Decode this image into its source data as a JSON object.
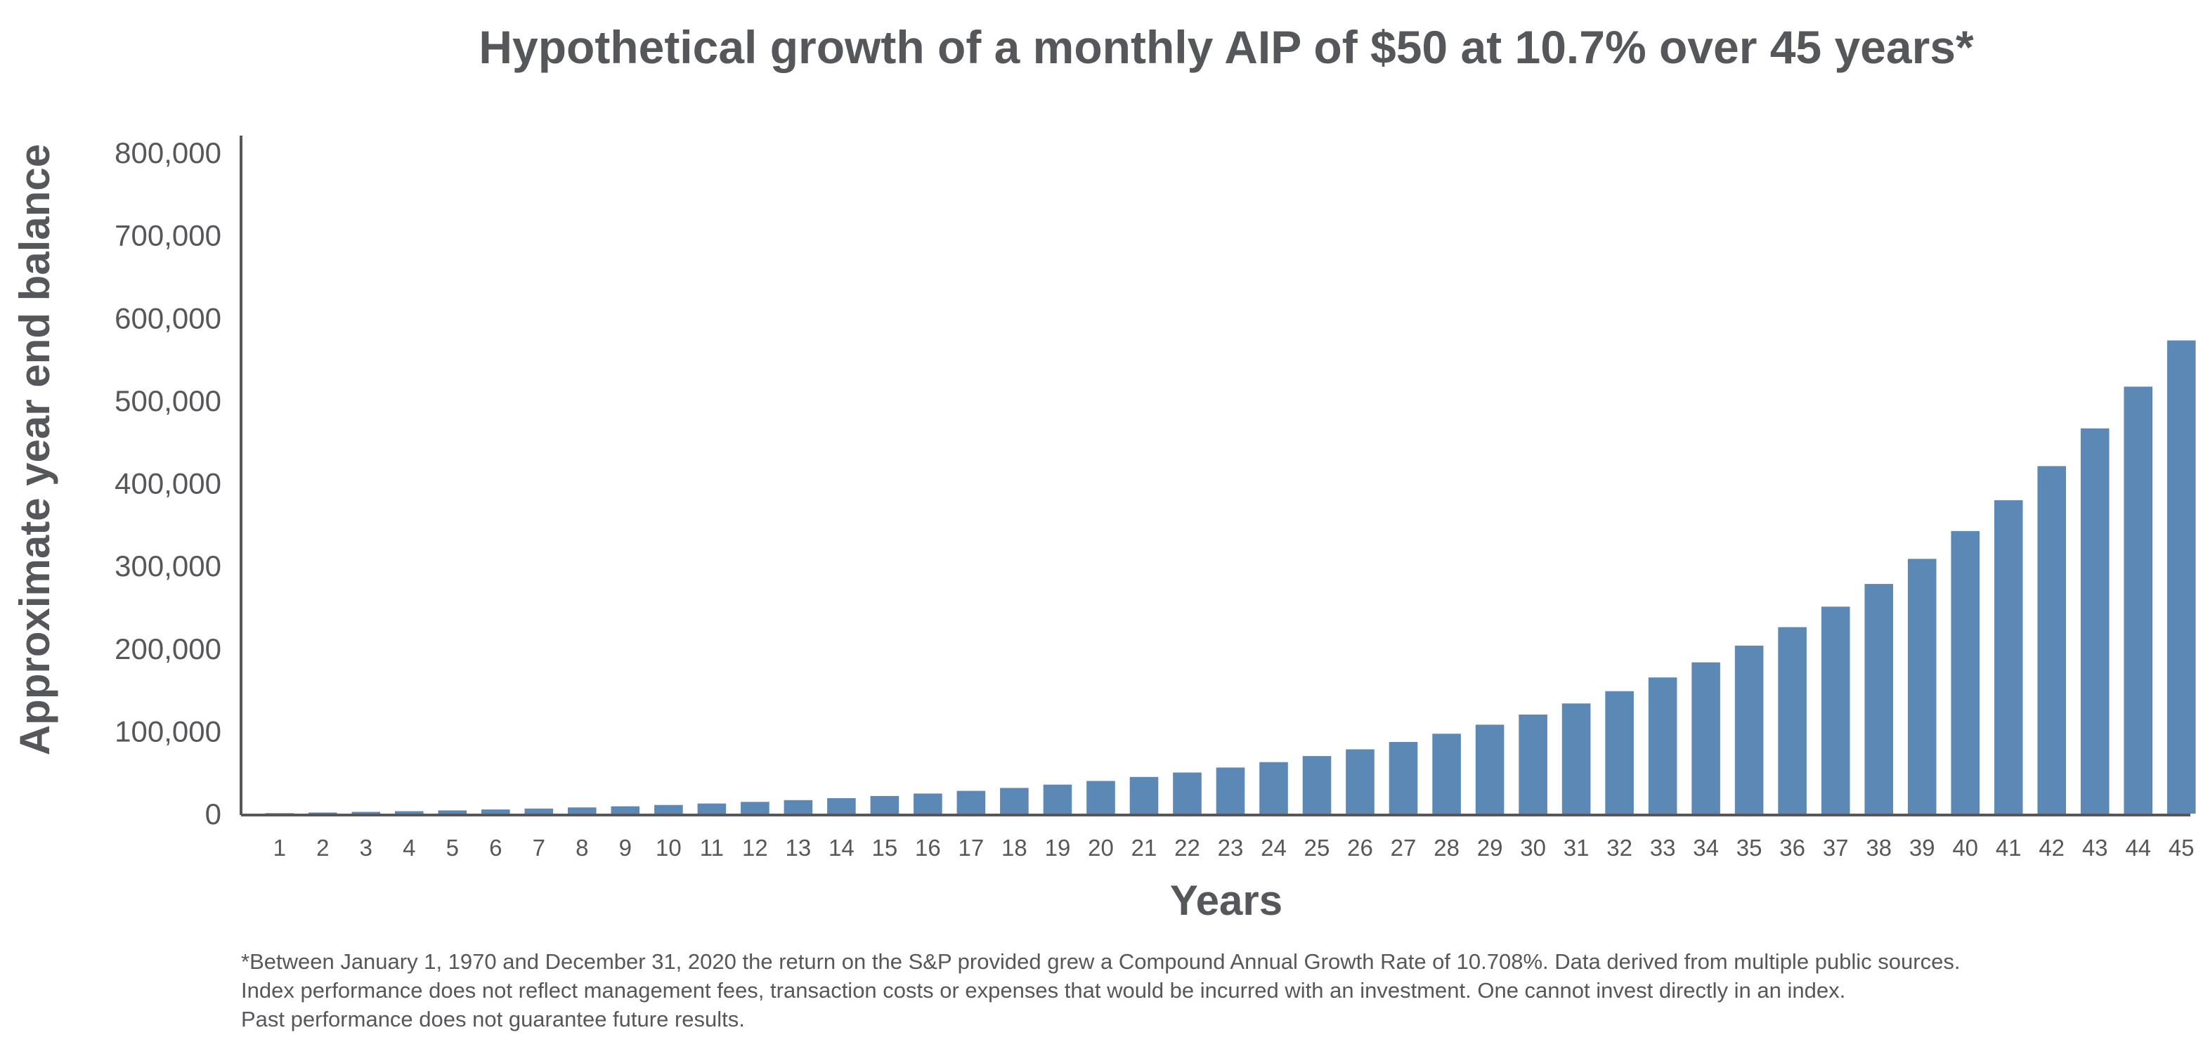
{
  "chart_data": {
    "type": "bar",
    "title": "Hypothetical growth of a monthly AIP of $50 at 10.7% over 45 years*",
    "xlabel": "Years",
    "ylabel": "Approximate year end balance",
    "ylim": [
      0,
      800000
    ],
    "yticks": [
      "0",
      "100,000",
      "200,000",
      "300,000",
      "400,000",
      "500,000",
      "600,000",
      "700,000",
      "800,000"
    ],
    "ytick_values": [
      0,
      100000,
      200000,
      300000,
      400000,
      500000,
      600000,
      700000,
      800000
    ],
    "grid": false,
    "legend": "none",
    "bar_color": "#5b88b5",
    "axis_color": "#55575b",
    "categories": [
      "1",
      "2",
      "3",
      "4",
      "5",
      "6",
      "7",
      "8",
      "9",
      "10",
      "11",
      "12",
      "13",
      "14",
      "15",
      "16",
      "17",
      "18",
      "19",
      "20",
      "21",
      "22",
      "23",
      "24",
      "25",
      "26",
      "27",
      "28",
      "29",
      "30",
      "31",
      "32",
      "33",
      "34",
      "35",
      "36",
      "37",
      "38",
      "39",
      "40",
      "41",
      "42",
      "43",
      "44",
      "45"
    ],
    "values": [
      630,
      1330,
      2100,
      2970,
      3920,
      4980,
      6150,
      7440,
      8880,
      10470,
      12230,
      14180,
      16340,
      18730,
      21370,
      24300,
      27540,
      31130,
      35100,
      39500,
      44370,
      49760,
      55730,
      62340,
      69660,
      77760,
      86730,
      96660,
      107660,
      119830,
      133300,
      148220,
      164730,
      183010,
      203250,
      225650,
      250450,
      277910,
      308310,
      341960,
      379220,
      420460,
      466120,
      516660,
      572620
    ]
  },
  "footnote": {
    "line1": "*Between January 1, 1970 and December 31, 2020 the return on the S&P provided grew a Compound Annual Growth Rate of 10.708%. Data derived from multiple public sources.",
    "line2": "Index performance does not reflect management fees, transaction costs or expenses that would be incurred with an investment. One cannot invest directly in an index.",
    "line3": "Past performance does not guarantee future results."
  }
}
